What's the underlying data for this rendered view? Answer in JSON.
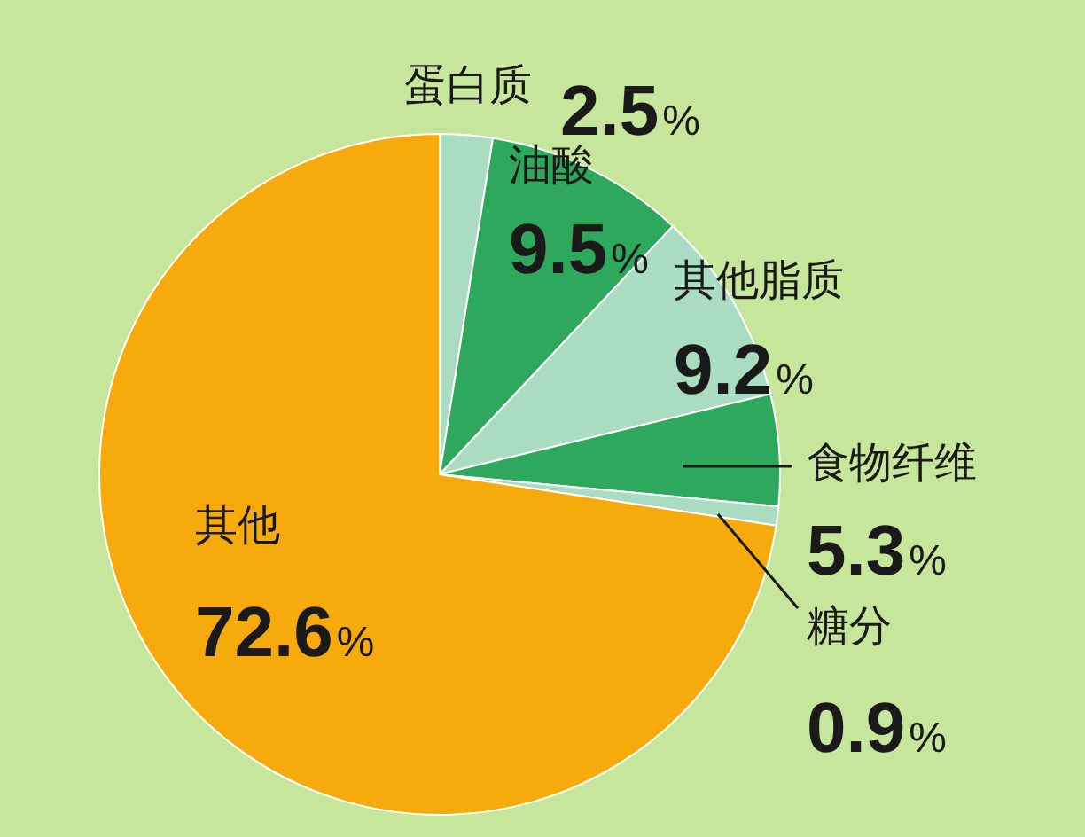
{
  "chart_data": {
    "type": "pie",
    "categories": [
      "蛋白质",
      "油酸",
      "其他脂质",
      "食物纤维",
      "糖分",
      "其他"
    ],
    "values": [
      2.5,
      9.5,
      9.2,
      5.3,
      0.9,
      72.6
    ],
    "colors": [
      "#a9dcc1",
      "#2ea85c",
      "#a9dcc1",
      "#2ea85c",
      "#a9dcc1",
      "#f7aa0c"
    ],
    "value_labels": [
      "2.5%",
      "9.5%",
      "9.2%",
      "5.3%",
      "0.9%",
      "72.6%"
    ],
    "legend": false
  }
}
